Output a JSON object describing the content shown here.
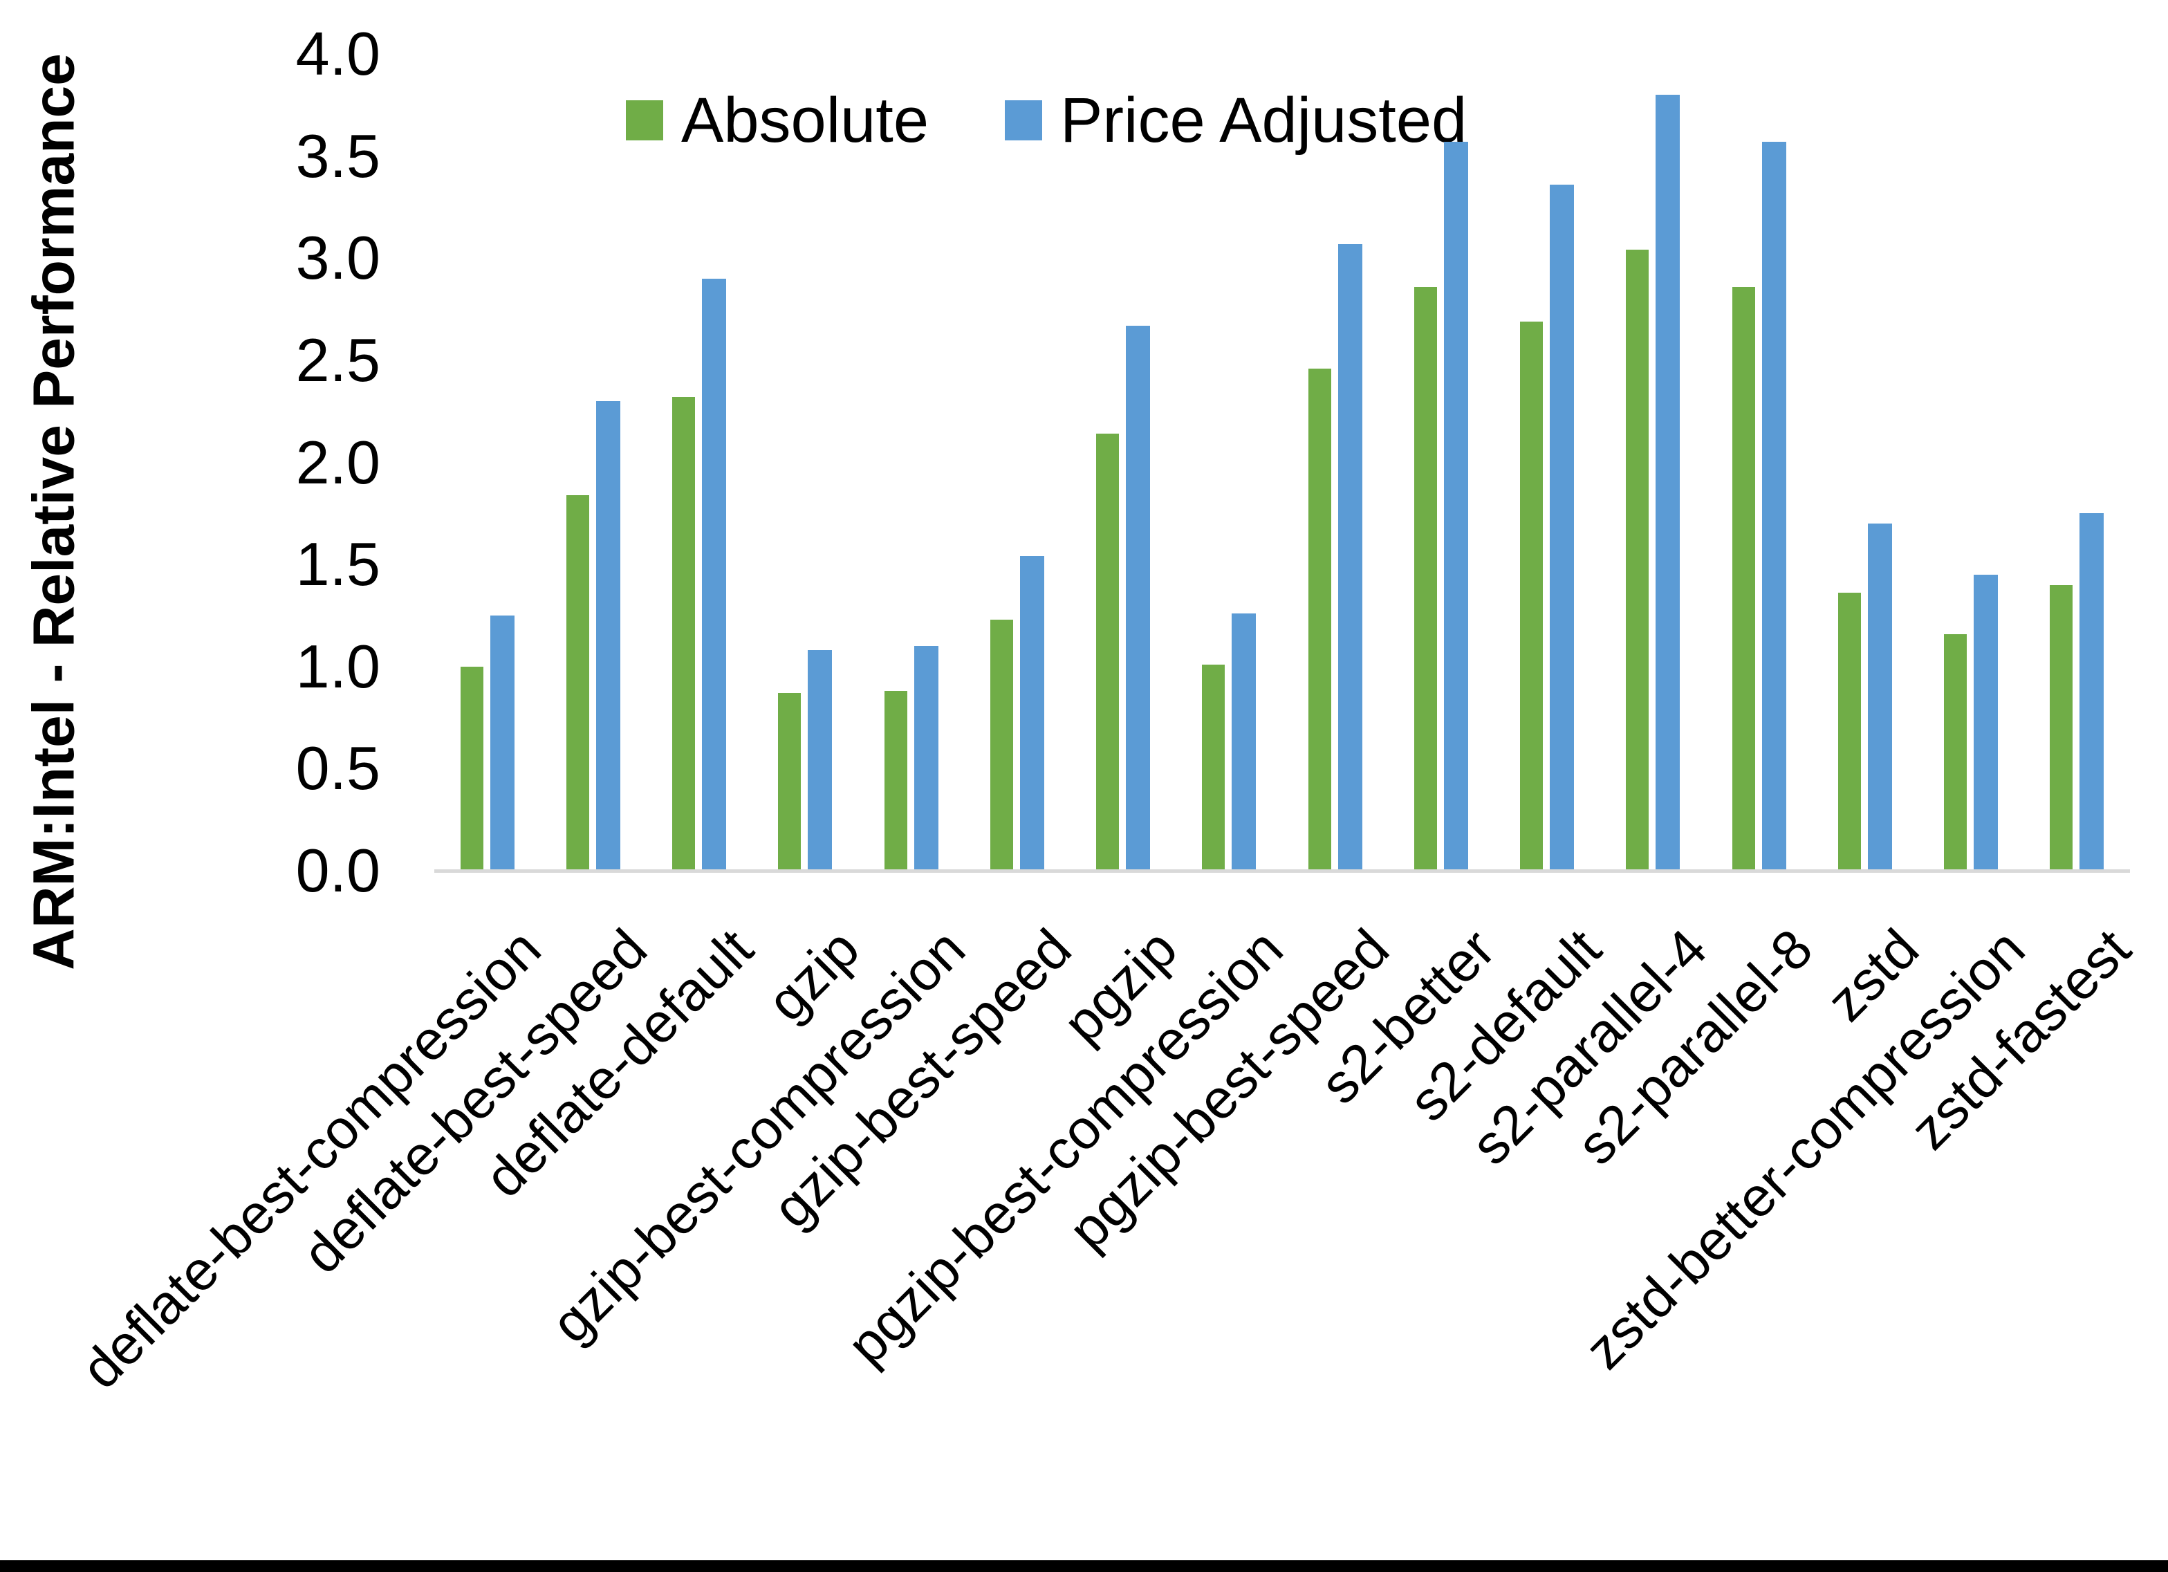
{
  "chart_data": {
    "type": "bar",
    "title": "",
    "ylabel": "ARM:Intel - Relative Performance",
    "xlabel": "",
    "ylim": [
      0.0,
      4.0
    ],
    "ytick_labels": [
      "0.0",
      "0.5",
      "1.0",
      "1.5",
      "2.0",
      "2.5",
      "3.0",
      "3.5",
      "4.0"
    ],
    "grid": false,
    "legend_position": "top-center",
    "categories": [
      "deflate-best-compression",
      "deflate-best-speed",
      "deflate-default",
      "gzip",
      "gzip-best-compression",
      "gzip-best-speed",
      "pgzip",
      "pgzip-best-compression",
      "pgzip-best-speed",
      "s2-better",
      "s2-default",
      "s2-parallel-4",
      "s2-parallel-8",
      "zstd",
      "zstd-better-compression",
      "zstd-fastest"
    ],
    "series": [
      {
        "name": "Absolute",
        "color": "#70AD47",
        "values": [
          1.0,
          1.84,
          2.32,
          0.87,
          0.88,
          1.23,
          2.14,
          1.01,
          2.46,
          2.86,
          2.69,
          3.04,
          2.86,
          1.36,
          1.16,
          1.4
        ]
      },
      {
        "name": "Price Adjusted",
        "color": "#5B9BD5",
        "values": [
          1.25,
          2.3,
          2.9,
          1.08,
          1.1,
          1.54,
          2.67,
          1.26,
          3.07,
          3.57,
          3.36,
          3.8,
          3.57,
          1.7,
          1.45,
          1.75
        ]
      }
    ]
  },
  "colors": {
    "axis_line": "#D9D9D9",
    "text": "#000000",
    "background": "#FFFFFF",
    "bottom_bar": "#000000"
  }
}
